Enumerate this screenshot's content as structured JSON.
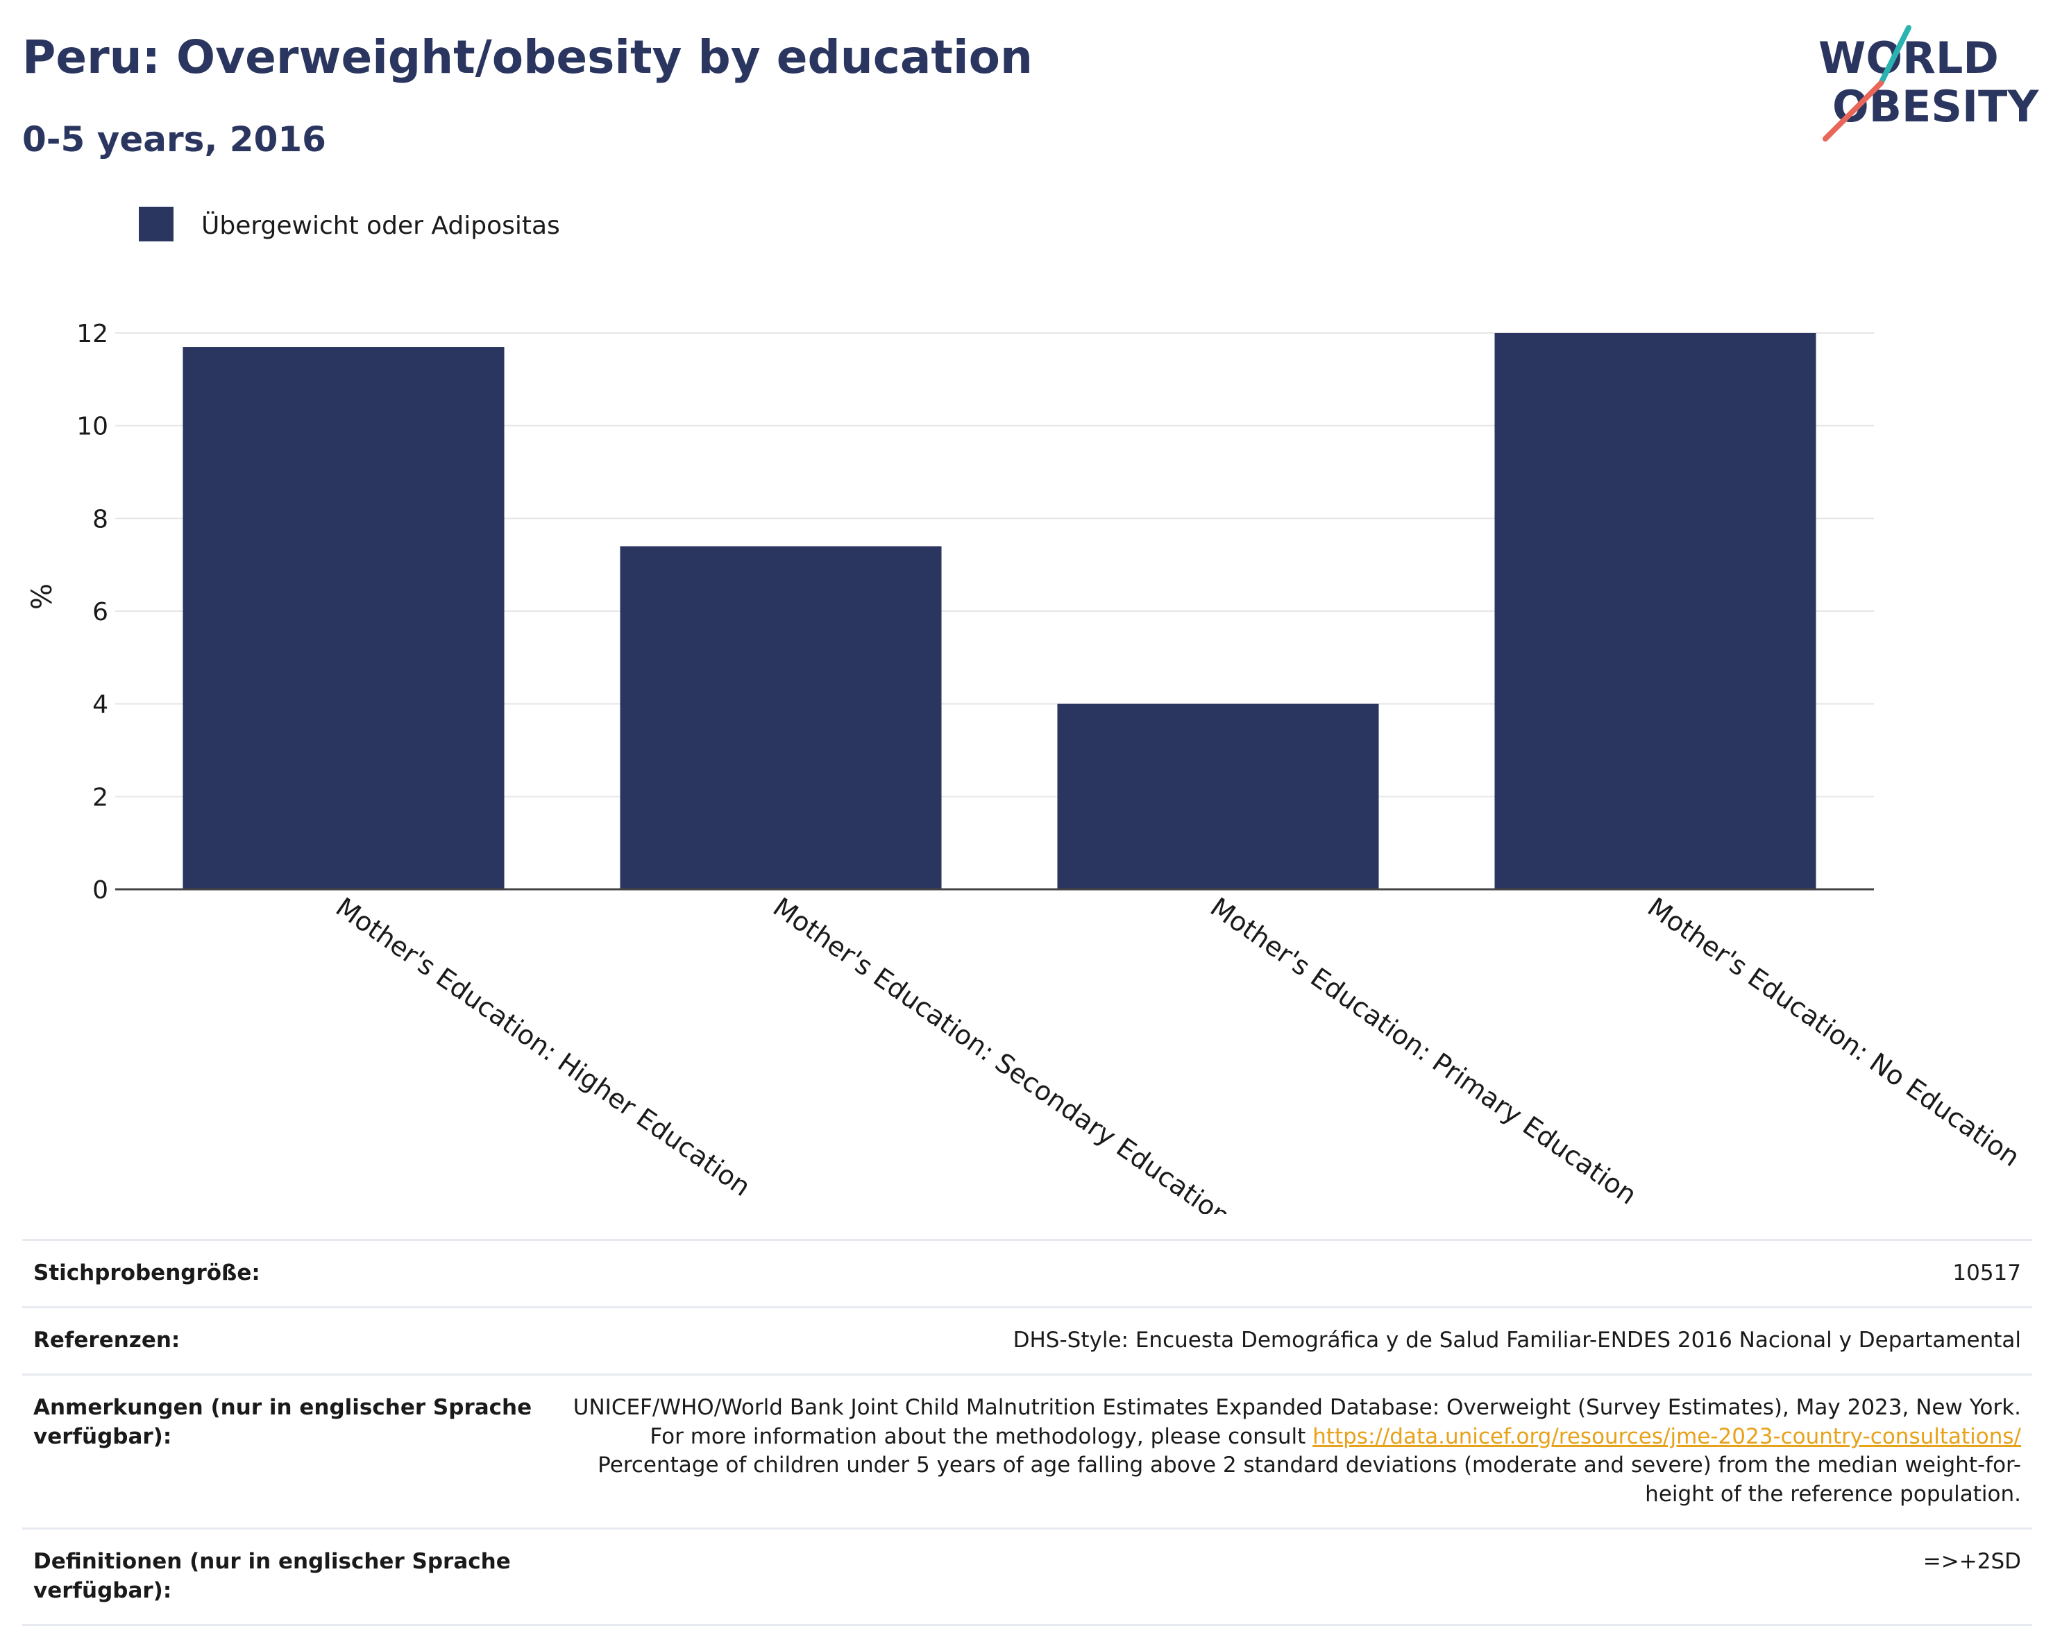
{
  "header": {
    "title": "Peru: Overweight/obesity by education",
    "subtitle": "0-5 years, 2016"
  },
  "logo": {
    "line1": "WORLD",
    "line2": "OBESITY",
    "accent_teal": "#2bb3b1",
    "accent_coral": "#e8665a",
    "text_color": "#2a365f"
  },
  "chart_data": {
    "type": "bar",
    "categories": [
      "Mother's Education: Higher Education",
      "Mother's Education: Secondary Education",
      "Mother's Education: Primary Education",
      "Mother's Education: No Education"
    ],
    "series": [
      {
        "name": "Übergewicht oder Adipositas",
        "values": [
          11.7,
          7.4,
          4.0,
          12.0
        ],
        "color": "#2a365f"
      }
    ],
    "ylabel": "%",
    "ylim": [
      0,
      12
    ],
    "yticks": [
      0,
      2,
      4,
      6,
      8,
      10,
      12
    ],
    "grid": true,
    "legend_position": "top-left"
  },
  "info": {
    "sample_label": "Stichprobengröße:",
    "sample_value": "10517",
    "refs_label": "Referenzen:",
    "refs_value": "DHS-Style: Encuesta Demográfica y de Salud Familiar-ENDES 2016 Nacional y Departamental",
    "notes_label": "Anmerkungen (nur in englischer Sprache verfügbar):",
    "notes_text_1": "UNICEF/WHO/World Bank Joint Child Malnutrition Estimates Expanded Database: Overweight (Survey Estimates), May 2023, New York. For more information about the methodology, please consult ",
    "notes_link": "https://data.unicef.org/resources/jme-2023-country-consultations/",
    "notes_text_2": "Percentage of children under 5 years of age falling above 2 standard deviations (moderate and severe) from the median weight-for-height of the reference population.",
    "defs_label": "Definitionen (nur in englischer Sprache verfügbar):",
    "defs_value": "=>+2SD"
  }
}
